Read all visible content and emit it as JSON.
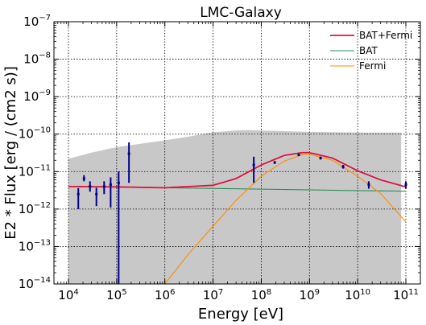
{
  "chart_data": {
    "type": "line",
    "title": "LMC-Galaxy",
    "xlabel": "Energy [eV]",
    "ylabel": "E2 * Flux [erg / (cm2 s)]",
    "xscale": "log",
    "yscale": "log",
    "xlim": [
      5000,
      200000000000
    ],
    "ylim": [
      1e-14,
      1e-07
    ],
    "x_ticks": [
      {
        "value": 10000,
        "base": "10",
        "exp": "4"
      },
      {
        "value": 100000,
        "base": "10",
        "exp": "5"
      },
      {
        "value": 1000000,
        "base": "10",
        "exp": "6"
      },
      {
        "value": 10000000,
        "base": "10",
        "exp": "7"
      },
      {
        "value": 100000000,
        "base": "10",
        "exp": "8"
      },
      {
        "value": 1000000000,
        "base": "10",
        "exp": "9"
      },
      {
        "value": 10000000000,
        "base": "10",
        "exp": "10"
      },
      {
        "value": 100000000000,
        "base": "10",
        "exp": "11"
      }
    ],
    "y_ticks": [
      {
        "value": 1e-14,
        "base": "10",
        "exp": "−14"
      },
      {
        "value": 1e-13,
        "base": "10",
        "exp": "−13"
      },
      {
        "value": 1e-12,
        "base": "10",
        "exp": "−12"
      },
      {
        "value": 1e-11,
        "base": "10",
        "exp": "−11"
      },
      {
        "value": 1e-10,
        "base": "10",
        "exp": "−10"
      },
      {
        "value": 1e-09,
        "base": "10",
        "exp": "−9"
      },
      {
        "value": 1e-08,
        "base": "10",
        "exp": "−8"
      },
      {
        "value": 1e-07,
        "base": "10",
        "exp": "−7"
      }
    ],
    "grid": true,
    "legend_position": "top-right",
    "colors": {
      "bat_fermi": "#dc143c",
      "bat": "#2e8b57",
      "fermi": "#ff8c00",
      "points": "#00008b",
      "band": "#c8c8c8"
    },
    "series": [
      {
        "name": "BAT+Fermi",
        "color": "#dc143c",
        "x": [
          10000,
          100000,
          1000000,
          10000000,
          30000000,
          100000000,
          300000000,
          700000000,
          1000000000,
          3000000000,
          10000000000,
          30000000000,
          100000000000
        ],
        "y": [
          4e-12,
          3.9e-12,
          3.7e-12,
          4.3e-12,
          6.5e-12,
          1.5e-11,
          2.7e-11,
          3.2e-11,
          3.2e-11,
          2.3e-11,
          1.05e-11,
          6e-12,
          3.9e-12
        ]
      },
      {
        "name": "BAT",
        "color": "#2e8b57",
        "x": [
          10000,
          100000,
          1000000,
          10000000,
          100000000,
          1000000000,
          10000000000,
          100000000000
        ],
        "y": [
          4e-12,
          3.85e-12,
          3.7e-12,
          3.55e-12,
          3.4e-12,
          3.25e-12,
          3.1e-12,
          3e-12
        ]
      },
      {
        "name": "Fermi",
        "color": "#ff8c00",
        "x": [
          1000000,
          3000000,
          10000000,
          30000000,
          100000000,
          300000000,
          700000000,
          1000000000,
          3000000000,
          10000000000,
          30000000000,
          100000000000
        ],
        "y": [
          1e-14,
          6e-14,
          3.5e-13,
          1.7e-12,
          7.5e-12,
          1.9e-11,
          2.8e-11,
          2.9e-11,
          2e-11,
          7.5e-12,
          2.6e-12,
          4.5e-13
        ]
      }
    ],
    "band": {
      "x": [
        10000,
        30000,
        100000,
        1000000,
        3000000,
        10000000,
        30000000,
        60000000,
        100000000,
        1000000000,
        10000000000,
        80000000000
      ],
      "upper": [
        2.2e-11,
        3.2e-11,
        4.5e-11,
        6.8e-11,
        8.5e-11,
        1.12e-10,
        1.25e-10,
        1.28e-10,
        1.25e-10,
        1.15e-10,
        1.1e-10,
        1.1e-10
      ],
      "lower": 1e-14
    },
    "data_points": [
      {
        "x": 16000,
        "y": 2.5e-12,
        "ylo": 1e-12,
        "yhi": 3.6e-12
      },
      {
        "x": 21000,
        "y": 6.5e-12,
        "ylo": 5.5e-12,
        "yhi": 8e-12
      },
      {
        "x": 28000,
        "y": 4e-12,
        "ylo": 2.9e-12,
        "yhi": 5.5e-12
      },
      {
        "x": 38000,
        "y": 2.5e-12,
        "ylo": 1.2e-12,
        "yhi": 3.7e-12
      },
      {
        "x": 55000,
        "y": 4e-12,
        "ylo": 2.5e-12,
        "yhi": 5.5e-12
      },
      {
        "x": 75000,
        "y": 4.5e-12,
        "ylo": 1.1e-12,
        "yhi": 7e-12
      },
      {
        "x": 110000,
        "y": 5e-12,
        "ylo": 1e-14,
        "yhi": 1e-11
      },
      {
        "x": 180000,
        "y": 3e-11,
        "ylo": 5e-12,
        "yhi": 6e-11
      },
      {
        "x": 70000000,
        "y": 1.5e-11,
        "ylo": 5e-12,
        "yhi": 2.5e-11
      },
      {
        "x": 190000000,
        "y": 1.75e-11,
        "ylo": 1.6e-11,
        "yhi": 1.9e-11
      },
      {
        "x": 600000000,
        "y": 2.8e-11,
        "ylo": 2.6e-11,
        "yhi": 3e-11
      },
      {
        "x": 1700000000,
        "y": 2.3e-11,
        "ylo": 2.1e-11,
        "yhi": 2.5e-11
      },
      {
        "x": 5000000000,
        "y": 1.35e-11,
        "ylo": 1.2e-11,
        "yhi": 1.5e-11
      },
      {
        "x": 17000000000,
        "y": 4.5e-12,
        "ylo": 3.5e-12,
        "yhi": 5.5e-12
      },
      {
        "x": 100000000000,
        "y": 4.5e-12,
        "ylo": 3.5e-12,
        "yhi": 5.5e-12
      }
    ]
  }
}
